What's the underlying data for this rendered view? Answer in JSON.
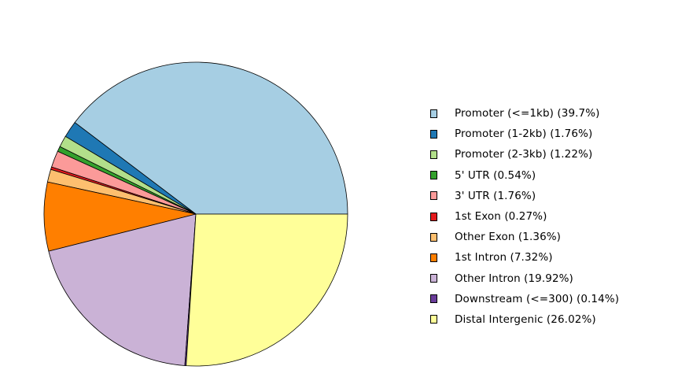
{
  "chart_data": {
    "type": "pie",
    "start_angle_deg": 0,
    "direction": "counterclockwise",
    "slices": [
      {
        "label": "Promoter (<=1kb) (39.7%)",
        "value": 39.7,
        "color": "#a6cee3"
      },
      {
        "label": "Promoter (1-2kb) (1.76%)",
        "value": 1.76,
        "color": "#1f78b4"
      },
      {
        "label": "Promoter (2-3kb) (1.22%)",
        "value": 1.22,
        "color": "#b2df8a"
      },
      {
        "label": "5' UTR (0.54%)",
        "value": 0.54,
        "color": "#33a02c"
      },
      {
        "label": "3' UTR (1.76%)",
        "value": 1.76,
        "color": "#fb9a99"
      },
      {
        "label": "1st Exon (0.27%)",
        "value": 0.27,
        "color": "#e31a1c"
      },
      {
        "label": "Other Exon (1.36%)",
        "value": 1.36,
        "color": "#fdbf6f"
      },
      {
        "label": "1st Intron (7.32%)",
        "value": 7.32,
        "color": "#ff7f00"
      },
      {
        "label": "Other Intron (19.92%)",
        "value": 19.92,
        "color": "#cab2d6"
      },
      {
        "label": "Downstream (<=300) (0.14%)",
        "value": 0.14,
        "color": "#6a3d9a"
      },
      {
        "label": "Distal Intergenic (26.02%)",
        "value": 26.02,
        "color": "#ffff99"
      }
    ],
    "legend": "right"
  }
}
